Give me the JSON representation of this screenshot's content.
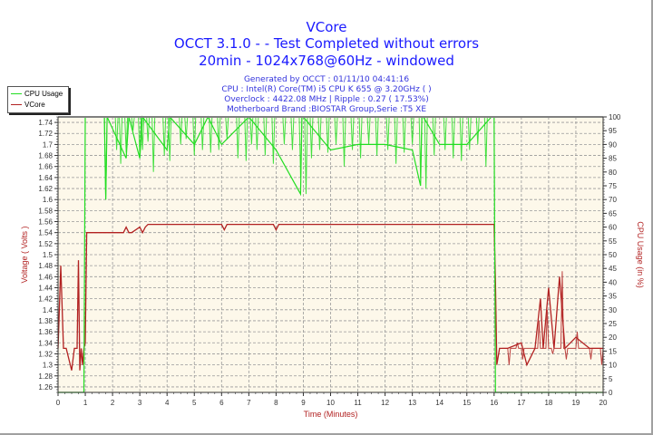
{
  "header": {
    "title": "VCore",
    "subtitle": "OCCT 3.1.0 -  - Test Completed without errors",
    "config": "20min - 1024x768@60Hz - windowed",
    "info": [
      "Generated by OCCT : 01/11/10 04:41:16",
      "CPU : Intel(R) Core(TM) i5 CPU K 655 @ 3.20GHz (  )",
      "Overclock : 4422.08 MHz | Ripple : 0.27 ( 17.53%)",
      "Motherboard Brand :BIOSTAR Group,Serie :T5 XE"
    ]
  },
  "legend": {
    "items": [
      {
        "label": "CPU Usage",
        "color": "#22dd22"
      },
      {
        "label": "VCore",
        "color": "#b22222"
      }
    ]
  },
  "axes": {
    "xlabel": "Time (Minutes)",
    "ylabel_left": "Voltage ( Volts )",
    "ylabel_right": "CPU Usage (in %)"
  },
  "colors": {
    "plot_bg": "#fdf8ea",
    "cpu_line": "#22dd22",
    "vcore_line": "#b22222",
    "title": "#1a1aff",
    "grid": "#999999"
  },
  "chart_data": {
    "type": "line",
    "title": "VCore",
    "xlabel": "Time (Minutes)",
    "ylabel": "Voltage ( Volts )",
    "ylabel_secondary": "CPU Usage (in %)",
    "xlim": [
      0,
      20
    ],
    "ylim": [
      1.25,
      1.75
    ],
    "ylim_secondary": [
      0,
      100
    ],
    "x_ticks": [
      "0",
      "1",
      "2",
      "3",
      "4",
      "5",
      "6",
      "7",
      "8",
      "9",
      "10",
      "11",
      "12",
      "13",
      "14",
      "15",
      "16",
      "17",
      "18",
      "19",
      "20"
    ],
    "y_ticks": [
      "1.26",
      "1.28",
      "1.3",
      "1.32",
      "1.34",
      "1.36",
      "1.38",
      "1.4",
      "1.42",
      "1.44",
      "1.46",
      "1.48",
      "1.5",
      "1.52",
      "1.54",
      "1.56",
      "1.58",
      "1.6",
      "1.62",
      "1.64",
      "1.66",
      "1.68",
      "1.7",
      "1.72",
      "1.74"
    ],
    "y_ticks_secondary": [
      "0",
      "5",
      "10",
      "15",
      "20",
      "25",
      "30",
      "35",
      "40",
      "45",
      "50",
      "55",
      "60",
      "65",
      "70",
      "75",
      "80",
      "85",
      "90",
      "95",
      "100"
    ],
    "grid": true,
    "legend_position": "top-left",
    "series": [
      {
        "name": "VCore",
        "axis": "left",
        "x": [
          0,
          0.1,
          0.2,
          0.3,
          0.5,
          0.6,
          0.7,
          0.75,
          0.8,
          0.85,
          0.9,
          0.95,
          1.0,
          1.05,
          2.4,
          2.5,
          2.6,
          2.7,
          3.0,
          3.1,
          3.2,
          3.3,
          6.0,
          6.1,
          6.2,
          7.9,
          8.0,
          8.1,
          16.0,
          16.05,
          16.1,
          16.2,
          16.5,
          17.0,
          17.2,
          17.5,
          17.7,
          17.8,
          18.0,
          18.2,
          18.4,
          18.6,
          19.0,
          19.5,
          20.0
        ],
        "values": [
          1.33,
          1.48,
          1.33,
          1.33,
          1.29,
          1.33,
          1.33,
          1.49,
          1.29,
          1.33,
          1.3,
          1.33,
          1.34,
          1.54,
          1.54,
          1.55,
          1.54,
          1.54,
          1.55,
          1.54,
          1.55,
          1.555,
          1.555,
          1.545,
          1.555,
          1.555,
          1.545,
          1.555,
          1.555,
          1.45,
          1.3,
          1.33,
          1.33,
          1.34,
          1.3,
          1.33,
          1.42,
          1.33,
          1.44,
          1.33,
          1.46,
          1.33,
          1.35,
          1.33,
          1.33
        ]
      },
      {
        "name": "CPU Usage",
        "axis": "right",
        "x": [
          0,
          0.95,
          1.0,
          1.05,
          1.7,
          1.75,
          1.8,
          2.5,
          2.6,
          3.0,
          3.1,
          4.0,
          4.1,
          5.0,
          5.5,
          6.0,
          7.0,
          8.0,
          8.9,
          8.95,
          9.0,
          10.0,
          11.0,
          12.0,
          13.0,
          13.3,
          13.35,
          13.4,
          14.0,
          15.0,
          15.9,
          16.0,
          16.05,
          20.0
        ],
        "values": [
          0,
          0,
          100,
          100,
          100,
          70,
          100,
          85,
          100,
          85,
          100,
          88,
          100,
          90,
          100,
          90,
          100,
          88,
          72,
          100,
          100,
          88,
          90,
          90,
          88,
          75,
          100,
          100,
          90,
          90,
          100,
          100,
          0,
          0
        ]
      }
    ]
  }
}
